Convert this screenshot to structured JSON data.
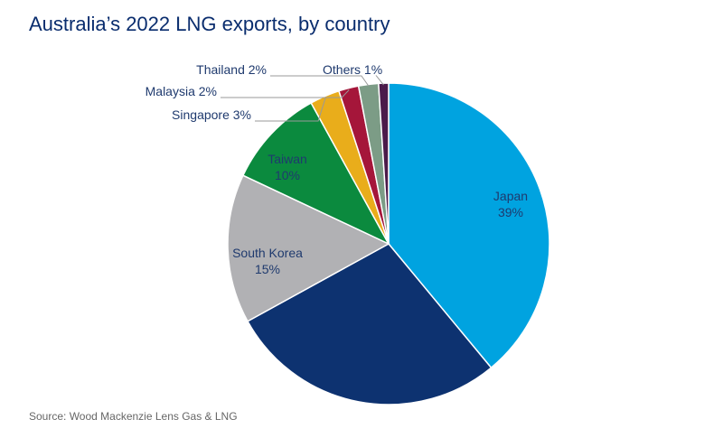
{
  "chart_data": {
    "type": "pie",
    "title": "Australia’s 2022 LNG exports, by country",
    "source": "Source: Wood Mackenzie Lens Gas & LNG",
    "categories": [
      "Japan",
      null,
      "South Korea",
      "Taiwan",
      "Singapore",
      "Malaysia",
      "Thailand",
      "Others"
    ],
    "values": [
      39,
      28,
      15,
      10,
      3,
      2,
      2,
      1
    ],
    "value_labels": [
      "39%",
      null,
      "15%",
      "10%",
      "3%",
      "2%",
      "2%",
      "1%"
    ],
    "colors": [
      "#00a3e0",
      "#0d3270",
      "#b1b1b4",
      "#0b8a3e",
      "#e9ad1b",
      "#a5163a",
      "#7c9c86",
      "#4b1a4a"
    ]
  }
}
